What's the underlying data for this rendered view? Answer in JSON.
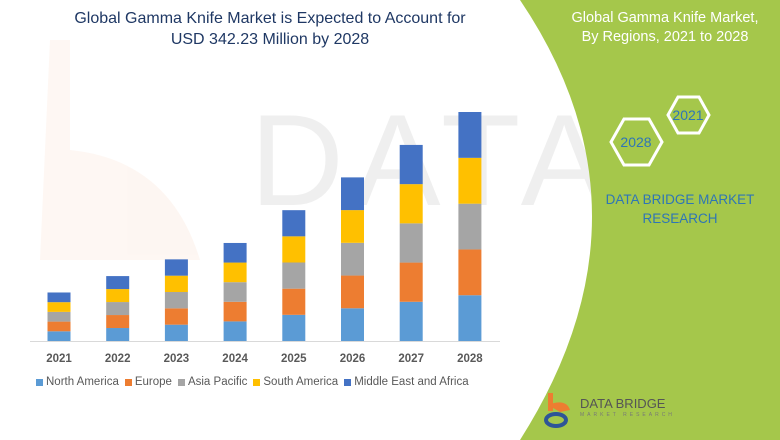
{
  "header": {
    "title_line1": "Global Gamma Knife Market is Expected to Account for",
    "title_line2": "USD 342.23 Million by 2028"
  },
  "side_panel": {
    "title_line1": "Global Gamma Knife Market,",
    "title_line2": "By Regions, 2021 to 2028",
    "hex_start": "2021",
    "hex_end": "2028",
    "brand_line1": "DATA BRIDGE MARKET",
    "brand_line2": "RESEARCH",
    "panel_color": "#a5c74b"
  },
  "logo": {
    "name": "DATA BRIDGE",
    "sub": "MARKET RESEARCH"
  },
  "chart_data": {
    "type": "bar",
    "stacked": true,
    "title": "",
    "xlabel": "",
    "ylabel": "",
    "y_axis_visible": false,
    "grid": false,
    "legend_position": "bottom",
    "categories": [
      "2021",
      "2022",
      "2023",
      "2024",
      "2025",
      "2026",
      "2027",
      "2028"
    ],
    "series": [
      {
        "name": "North America",
        "color": "#5b9bd5",
        "values": [
          14.5,
          19.4,
          24.4,
          29.3,
          39.1,
          48.9,
          58.6,
          68.4
        ]
      },
      {
        "name": "Europe",
        "color": "#ed7d31",
        "values": [
          14.5,
          19.4,
          24.4,
          29.3,
          39.1,
          48.9,
          58.6,
          68.4
        ]
      },
      {
        "name": "Asia Pacific",
        "color": "#a5a5a5",
        "values": [
          14.5,
          19.4,
          24.4,
          29.3,
          39.1,
          48.9,
          58.6,
          68.4
        ]
      },
      {
        "name": "South America",
        "color": "#ffc000",
        "values": [
          14.5,
          19.4,
          24.4,
          29.3,
          39.1,
          48.9,
          58.6,
          68.5
        ]
      },
      {
        "name": "Middle East and Africa",
        "color": "#4472c4",
        "values": [
          14.5,
          19.4,
          24.4,
          29.3,
          39.1,
          48.9,
          58.6,
          68.5
        ]
      }
    ]
  }
}
